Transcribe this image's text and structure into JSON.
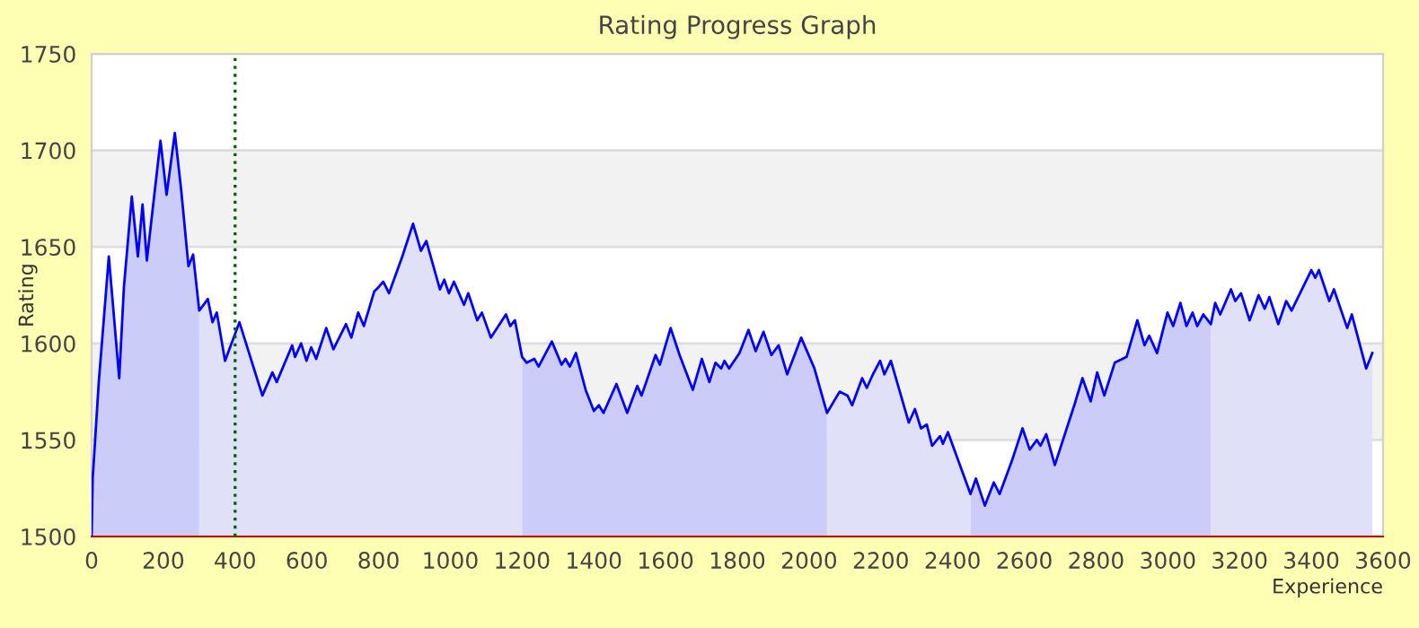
{
  "chart_data": {
    "type": "area",
    "title": "Rating Progress Graph",
    "xlabel": "Experience",
    "ylabel": "Rating",
    "xlim": [
      0,
      3600
    ],
    "xticks": [
      0,
      200,
      400,
      600,
      800,
      1000,
      1200,
      1400,
      1600,
      1800,
      2000,
      2200,
      2400,
      2600,
      2800,
      3000,
      3200,
      3400,
      3600
    ],
    "ylim": [
      1500,
      1750
    ],
    "yticks": [
      1500,
      1550,
      1600,
      1650,
      1700,
      1750
    ],
    "grid": "y",
    "legend": false,
    "bands": [
      {
        "axis": "y",
        "from": 1550,
        "to": 1600,
        "color": "#f2f2f2"
      },
      {
        "axis": "y",
        "from": 1650,
        "to": 1700,
        "color": "#f2f2f2"
      }
    ],
    "ref_lines": [
      {
        "axis": "x",
        "value": 400,
        "color": "#006400",
        "line_style": "dotted"
      }
    ],
    "series": [
      {
        "color": "#ccccf8",
        "x": [
          0,
          3,
          20,
          48,
          77,
          90,
          112,
          129,
          142,
          154,
          192,
          209,
          232,
          250,
          270,
          283,
          300
        ],
        "values": [
          1500,
          1530,
          1580,
          1645,
          1582,
          1629,
          1676,
          1645,
          1672,
          1643,
          1705,
          1677,
          1709,
          1679,
          1640,
          1646,
          1617
        ]
      },
      {
        "color": "#e0e0f8",
        "x": [
          300,
          324,
          337,
          349,
          372,
          412,
          476,
          504,
          516,
          559,
          567,
          584,
          599,
          612,
          626,
          654,
          674,
          709,
          724,
          743,
          759,
          788,
          799,
          813,
          829,
          866,
          896,
          918,
          933,
          971,
          983,
          996,
          1010,
          1038,
          1050,
          1075,
          1088,
          1113,
          1155,
          1167,
          1180,
          1200
        ],
        "values": [
          1617,
          1623,
          1611,
          1616,
          1591,
          1611,
          1573,
          1585,
          1580,
          1599,
          1593,
          1600,
          1591,
          1598,
          1592,
          1608,
          1597,
          1610,
          1603,
          1616,
          1609,
          1627,
          1629,
          1632,
          1626,
          1645,
          1662,
          1648,
          1653,
          1628,
          1633,
          1626,
          1632,
          1620,
          1626,
          1612,
          1616,
          1603,
          1615,
          1609,
          1612,
          1593
        ]
      },
      {
        "color": "#ccccf8",
        "x": [
          1200,
          1213,
          1234,
          1246,
          1283,
          1310,
          1321,
          1333,
          1350,
          1377,
          1400,
          1414,
          1427,
          1463,
          1493,
          1521,
          1533,
          1572,
          1584,
          1614,
          1639,
          1676,
          1701,
          1722,
          1739,
          1755,
          1764,
          1777,
          1806,
          1831,
          1851,
          1873,
          1895,
          1915,
          1939,
          1978,
          2015,
          2050
        ],
        "values": [
          1593,
          1590,
          1592,
          1588,
          1601,
          1589,
          1592,
          1588,
          1595,
          1576,
          1565,
          1568,
          1564,
          1579,
          1564,
          1578,
          1573,
          1594,
          1589,
          1608,
          1594,
          1576,
          1592,
          1580,
          1590,
          1587,
          1591,
          1587,
          1595,
          1607,
          1596,
          1606,
          1594,
          1599,
          1584,
          1603,
          1587,
          1564
        ]
      },
      {
        "color": "#e0e0f8",
        "x": [
          2050,
          2085,
          2107,
          2120,
          2148,
          2161,
          2178,
          2198,
          2210,
          2228,
          2278,
          2295,
          2312,
          2328,
          2343,
          2365,
          2373,
          2387,
          2450
        ],
        "values": [
          1564,
          1575,
          1573,
          1568,
          1582,
          1577,
          1584,
          1591,
          1584,
          1591,
          1559,
          1566,
          1556,
          1558,
          1547,
          1552,
          1548,
          1554,
          1522
        ]
      },
      {
        "color": "#ccccf8",
        "x": [
          2450,
          2465,
          2490,
          2515,
          2531,
          2565,
          2595,
          2615,
          2635,
          2645,
          2661,
          2685,
          2741,
          2762,
          2785,
          2803,
          2823,
          2852,
          2885,
          2915,
          2935,
          2948,
          2970,
          2999,
          3015,
          3035,
          3052,
          3069,
          3082,
          3099,
          3120
        ],
        "values": [
          1522,
          1530,
          1516,
          1528,
          1522,
          1539,
          1556,
          1545,
          1550,
          1547,
          1553,
          1537,
          1569,
          1582,
          1570,
          1585,
          1573,
          1590,
          1593,
          1612,
          1599,
          1604,
          1595,
          1616,
          1609,
          1621,
          1609,
          1616,
          1609,
          1615,
          1610
        ]
      },
      {
        "color": "#e0e0f8",
        "x": [
          3120,
          3132,
          3146,
          3176,
          3188,
          3204,
          3228,
          3253,
          3270,
          3283,
          3308,
          3330,
          3345,
          3400,
          3411,
          3421,
          3450,
          3463,
          3500,
          3513,
          3553,
          3570
        ],
        "values": [
          1610,
          1621,
          1615,
          1628,
          1622,
          1626,
          1612,
          1625,
          1618,
          1624,
          1610,
          1622,
          1617,
          1638,
          1634,
          1638,
          1622,
          1628,
          1608,
          1615,
          1587,
          1595
        ]
      },
      {
        "type": "line",
        "color": "#0000ff",
        "x": [
          0,
          3,
          20,
          48,
          77,
          90,
          112,
          129,
          142,
          154,
          192,
          209,
          232,
          250,
          270,
          283,
          300,
          324,
          337,
          349,
          372,
          412,
          476,
          504,
          516,
          559,
          567,
          584,
          599,
          612,
          626,
          654,
          674,
          709,
          724,
          743,
          759,
          788,
          799,
          813,
          829,
          866,
          896,
          918,
          933,
          971,
          983,
          996,
          1010,
          1038,
          1050,
          1075,
          1088,
          1113,
          1155,
          1167,
          1180,
          1200,
          1213,
          1234,
          1246,
          1283,
          1310,
          1321,
          1333,
          1350,
          1377,
          1400,
          1414,
          1427,
          1463,
          1493,
          1521,
          1533,
          1572,
          1584,
          1614,
          1639,
          1676,
          1701,
          1722,
          1739,
          1755,
          1764,
          1777,
          1806,
          1831,
          1851,
          1873,
          1895,
          1915,
          1939,
          1978,
          2015,
          2050,
          2085,
          2107,
          2120,
          2148,
          2161,
          2178,
          2198,
          2210,
          2228,
          2278,
          2295,
          2312,
          2328,
          2343,
          2365,
          2373,
          2387,
          2450,
          2465,
          2490,
          2515,
          2531,
          2565,
          2595,
          2615,
          2635,
          2645,
          2661,
          2685,
          2741,
          2762,
          2785,
          2803,
          2823,
          2852,
          2885,
          2915,
          2935,
          2948,
          2970,
          2999,
          3015,
          3035,
          3052,
          3069,
          3082,
          3099,
          3120,
          3132,
          3146,
          3176,
          3188,
          3204,
          3228,
          3253,
          3270,
          3283,
          3308,
          3330,
          3345,
          3400,
          3411,
          3421,
          3450,
          3463,
          3500,
          3513,
          3553,
          3570
        ],
        "values": [
          1500,
          1530,
          1580,
          1645,
          1582,
          1629,
          1676,
          1645,
          1672,
          1643,
          1705,
          1677,
          1709,
          1679,
          1640,
          1646,
          1617,
          1623,
          1611,
          1616,
          1591,
          1611,
          1573,
          1585,
          1580,
          1599,
          1593,
          1600,
          1591,
          1598,
          1592,
          1608,
          1597,
          1610,
          1603,
          1616,
          1609,
          1627,
          1629,
          1632,
          1626,
          1645,
          1662,
          1648,
          1653,
          1628,
          1633,
          1626,
          1632,
          1620,
          1626,
          1612,
          1616,
          1603,
          1615,
          1609,
          1612,
          1593,
          1590,
          1592,
          1588,
          1601,
          1589,
          1592,
          1588,
          1595,
          1576,
          1565,
          1568,
          1564,
          1579,
          1564,
          1578,
          1573,
          1594,
          1589,
          1608,
          1594,
          1576,
          1592,
          1580,
          1590,
          1587,
          1591,
          1587,
          1595,
          1607,
          1596,
          1606,
          1594,
          1599,
          1584,
          1603,
          1587,
          1564,
          1575,
          1573,
          1568,
          1582,
          1577,
          1584,
          1591,
          1584,
          1591,
          1559,
          1566,
          1556,
          1558,
          1547,
          1552,
          1548,
          1554,
          1522,
          1530,
          1516,
          1528,
          1522,
          1539,
          1556,
          1545,
          1550,
          1547,
          1553,
          1537,
          1569,
          1582,
          1570,
          1585,
          1573,
          1590,
          1593,
          1612,
          1599,
          1604,
          1595,
          1616,
          1609,
          1621,
          1609,
          1616,
          1609,
          1615,
          1610,
          1621,
          1615,
          1628,
          1622,
          1626,
          1612,
          1625,
          1618,
          1624,
          1610,
          1622,
          1617,
          1638,
          1634,
          1638,
          1622,
          1628,
          1608,
          1615,
          1587,
          1595
        ]
      }
    ]
  }
}
